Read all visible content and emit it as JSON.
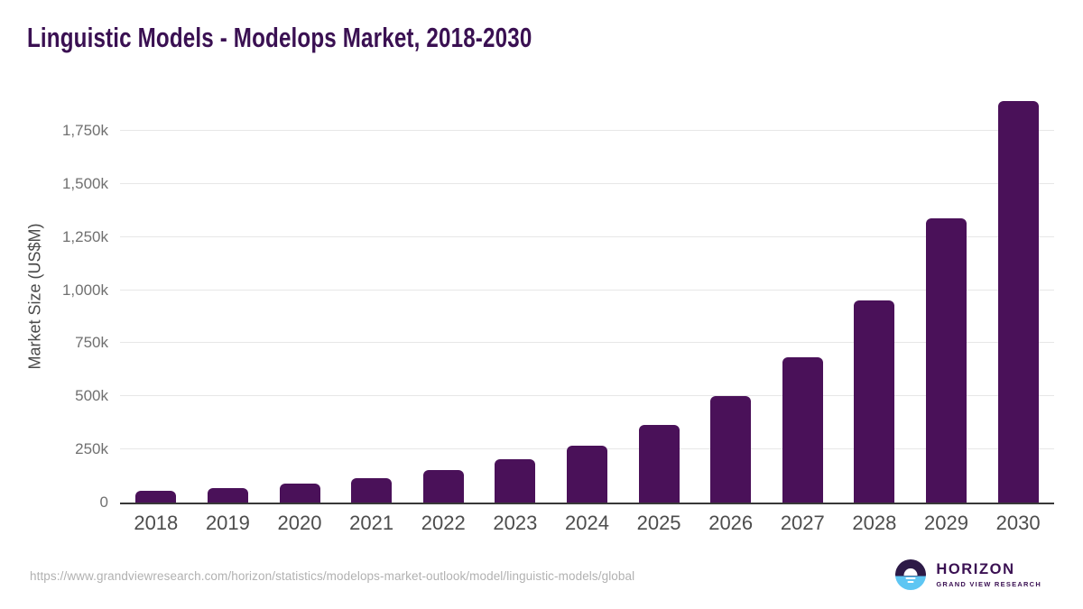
{
  "header": {
    "title": "Linguistic Models - Modelops Market, 2018-2030",
    "title_color": "#3a1052"
  },
  "chart_data": {
    "type": "bar",
    "title": "Linguistic Models - Modelops Market, 2018-2030",
    "categories": [
      "2018",
      "2019",
      "2020",
      "2021",
      "2022",
      "2023",
      "2024",
      "2025",
      "2026",
      "2027",
      "2028",
      "2029",
      "2030"
    ],
    "values": [
      57,
      70,
      90,
      115,
      155,
      205,
      268,
      365,
      500,
      685,
      950,
      1340,
      1890
    ],
    "values_unit": "k (US$M, thousands)",
    "xlabel": "",
    "ylabel": "Market Size (US$M)",
    "ylim": [
      0,
      1940
    ],
    "yticks": [
      0,
      250,
      500,
      750,
      1000,
      1250,
      1500,
      1750
    ],
    "ytick_labels": [
      "0",
      "250k",
      "500k",
      "750k",
      "1,000k",
      "1,250k",
      "1,500k",
      "1,750k"
    ],
    "grid": "horizontal gridlines at each y tick",
    "legend": "none",
    "bar_color": "#4a1159",
    "axis_line_color": "#383838",
    "gridline_color": "#e7e7e7"
  },
  "footer": {
    "source_url": "https://www.grandviewresearch.com/horizon/statistics/modelops-market-outlook/model/linguistic-models/global",
    "logo": {
      "title": "HORIZON",
      "subtitle": "GRAND VIEW RESEARCH",
      "circle_purple": "#2d1a47",
      "circle_blue": "#5ec6f3",
      "text_color": "#3a1052"
    }
  }
}
